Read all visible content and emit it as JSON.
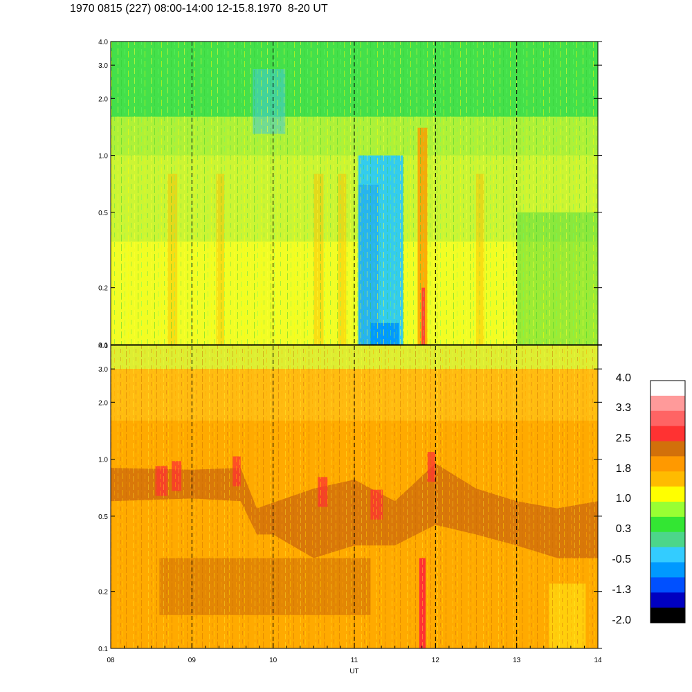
{
  "title": "1970 0815 (227) 08:00-14:00 12-15.8.1970  8-20 UT",
  "chart_data": {
    "type": "heatmap",
    "title": "1970 0815 (227) 08:00-14:00 12-15.8.1970  8-20 UT",
    "xlabel": "UT",
    "x_ticks": [
      "08",
      "09",
      "10",
      "11",
      "12",
      "13",
      "14"
    ],
    "xlim": [
      8,
      14
    ],
    "x_dashed_gridlines": [
      9,
      10,
      11,
      12,
      13
    ],
    "y_scale": "log",
    "ylim": [
      0.1,
      4.0
    ],
    "panels": [
      {
        "ylabel": "",
        "y_ticks": [
          "0.1",
          "0.2",
          "0.5",
          "1.0",
          "2.0",
          "3.0",
          "4.0"
        ],
        "dominant_levels": "green to yellow (0.3 to 1.0); blue/cyan (-0.5 to -1.3) block near 11:05-11:35 UT below 1.0"
      },
      {
        "ylabel": "",
        "y_ticks": [
          "0.1",
          "0.2",
          "0.5",
          "1.0",
          "2.0",
          "3.0",
          "4.0"
        ],
        "dominant_levels": "orange (1.8 to 2.5); red (2.5 to 3.3) streaks; band near 0.7-0.9"
      }
    ],
    "colorbar": {
      "ticks": [
        "4.0",
        "3.3",
        "2.5",
        "1.8",
        "1.0",
        "0.3",
        "-0.5",
        "-1.3",
        "-2.0"
      ],
      "colors": [
        "#ffffff",
        "#ff9a9a",
        "#ff6464",
        "#ff3232",
        "#d2700a",
        "#ff9900",
        "#ffbb00",
        "#ffff00",
        "#99ff33",
        "#33e633",
        "#4cd68a",
        "#33ccff",
        "#0099ff",
        "#0050ff",
        "#0000c0",
        "#000000"
      ]
    }
  }
}
